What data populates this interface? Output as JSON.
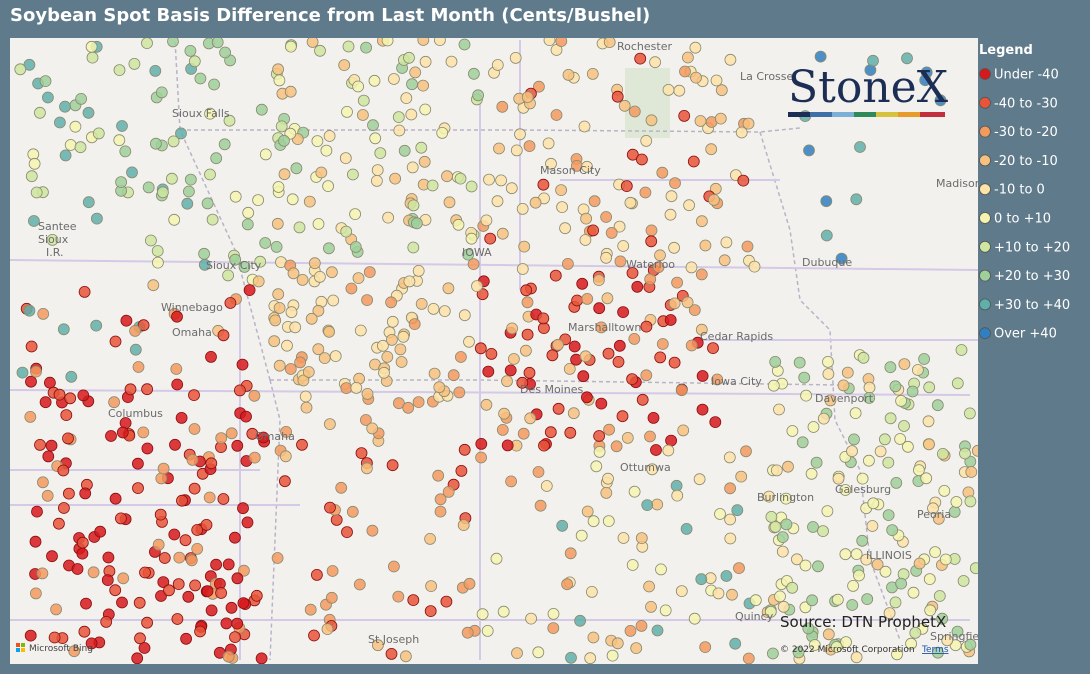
{
  "header": {
    "title": "Soybean Spot Basis Difference from Last Month (Cents/Bushel)"
  },
  "legend": {
    "title": "Legend",
    "items": [
      {
        "label": "Under -40",
        "color": "#d7191c"
      },
      {
        "label": "-40 to -30",
        "color": "#e8553a"
      },
      {
        "label": "-30 to -20",
        "color": "#f39a5e"
      },
      {
        "label": "-20 to -10",
        "color": "#f7c27f"
      },
      {
        "label": "-10 to 0",
        "color": "#fde3a8"
      },
      {
        "label": "0 to +10",
        "color": "#f4f4b0"
      },
      {
        "label": "+10 to +20",
        "color": "#cfe6a0"
      },
      {
        "label": "+20 to +30",
        "color": "#9fd09a"
      },
      {
        "label": "+30 to +40",
        "color": "#5fafaa"
      },
      {
        "label": "Over +40",
        "color": "#2f7fc1"
      }
    ]
  },
  "logo": "StoneX",
  "map": {
    "labels": [
      "Rochester",
      "La Crosse",
      "Sioux Falls",
      "Mason City",
      "Santee",
      "Sioux",
      "I.R.",
      "IOWA",
      "Sioux City",
      "Waterloo",
      "Dubuque",
      "Madison",
      "Winnebago",
      "Omaha",
      "Marshalltown",
      "Cedar Rapids",
      "Columbus",
      "Iowa City",
      "Des Moines",
      "Omaha",
      "Davenport",
      "Ottumwa",
      "Galesburg",
      "Burlington",
      "Peoria",
      "ILLINOIS",
      "St Joseph",
      "Springfield",
      "Quincy"
    ],
    "source": "Source: DTN ProphetX",
    "copyright": "© 2022 Microsoft Corporation",
    "terms": "Terms",
    "provider": "Microsoft Bing"
  }
}
